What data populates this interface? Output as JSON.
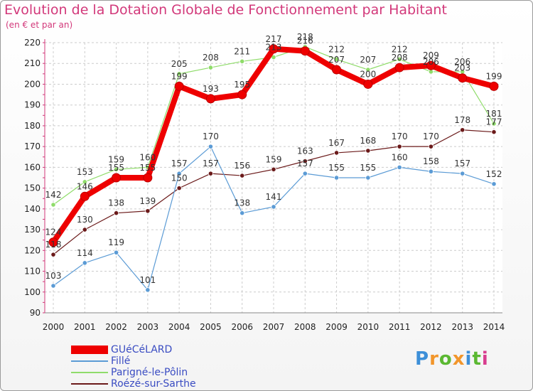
{
  "title": "Evolution de la Dotation Globale de Fonctionnement par Habitant",
  "subtitle": "(en € et par an)",
  "brand": {
    "text": "Proxiti",
    "colors": [
      "#3d8fd8",
      "#f2962b",
      "#5bb832",
      "#f2962b",
      "#3d8fd8",
      "#5bb832",
      "#d83d8f"
    ]
  },
  "chart_data": {
    "type": "line",
    "title": "Evolution de la Dotation Globale de Fonctionnement par Habitant",
    "subtitle": "(en € et par an)",
    "xlabel": "",
    "ylabel": "",
    "categories": [
      "2000",
      "2001",
      "2002",
      "2003",
      "2004",
      "2005",
      "2006",
      "2007",
      "2008",
      "2009",
      "2010",
      "2011",
      "2012",
      "2013",
      "2014"
    ],
    "ylim": [
      90,
      220
    ],
    "yticks": [
      90,
      100,
      110,
      120,
      130,
      140,
      150,
      160,
      170,
      180,
      190,
      200,
      210,
      220
    ],
    "grid": true,
    "legend_position": "bottom-left",
    "series": [
      {
        "name": "Roézé-sur-Sarthe",
        "color": "#6b1a1a",
        "width": 1.2,
        "values": [
          118,
          130,
          138,
          139,
          150,
          157,
          156,
          159,
          163,
          167,
          168,
          170,
          170,
          178,
          177
        ],
        "labels": [
          "118",
          "130",
          "138",
          "139",
          "150",
          "157",
          "156",
          "159",
          "163",
          "167",
          "168",
          "170",
          "170",
          "178",
          "177"
        ]
      },
      {
        "name": "Fillé",
        "color": "#5b9bd5",
        "width": 1.2,
        "values": [
          103,
          114,
          119,
          101,
          157,
          170,
          138,
          141,
          157,
          155,
          155,
          160,
          158,
          157,
          152
        ],
        "labels": [
          "103",
          "114",
          "119",
          "101",
          "157",
          "170",
          "138",
          "141",
          "157",
          "155",
          "155",
          "160",
          "158",
          "157",
          "152"
        ]
      },
      {
        "name": "Parigné-le-Pôlin",
        "color": "#8fdc6a",
        "width": 1.2,
        "values": [
          142,
          153,
          159,
          160,
          205,
          208,
          211,
          213,
          218,
          212,
          207,
          212,
          206,
          206,
          181
        ],
        "labels": [
          "142",
          "153",
          "159",
          "160",
          "205",
          "208",
          "211",
          "213",
          "218",
          "212",
          "207",
          "212",
          "206",
          "206",
          "181"
        ]
      },
      {
        "name": "GUéCéLARD",
        "color": "#ee0000",
        "width": 8,
        "values": [
          124,
          146,
          155,
          155,
          199,
          193,
          195,
          217,
          216,
          207,
          200,
          208,
          209,
          203,
          199
        ],
        "labels": [
          "124",
          "146",
          "155",
          "155",
          "199",
          "193",
          "195",
          "217",
          "216",
          "207",
          "200",
          "208",
          "209",
          "203",
          "199"
        ]
      }
    ],
    "legend_order": [
      "GUéCéLARD",
      "Fillé",
      "Parigné-le-Pôlin",
      "Roézé-sur-Sarthe"
    ]
  }
}
